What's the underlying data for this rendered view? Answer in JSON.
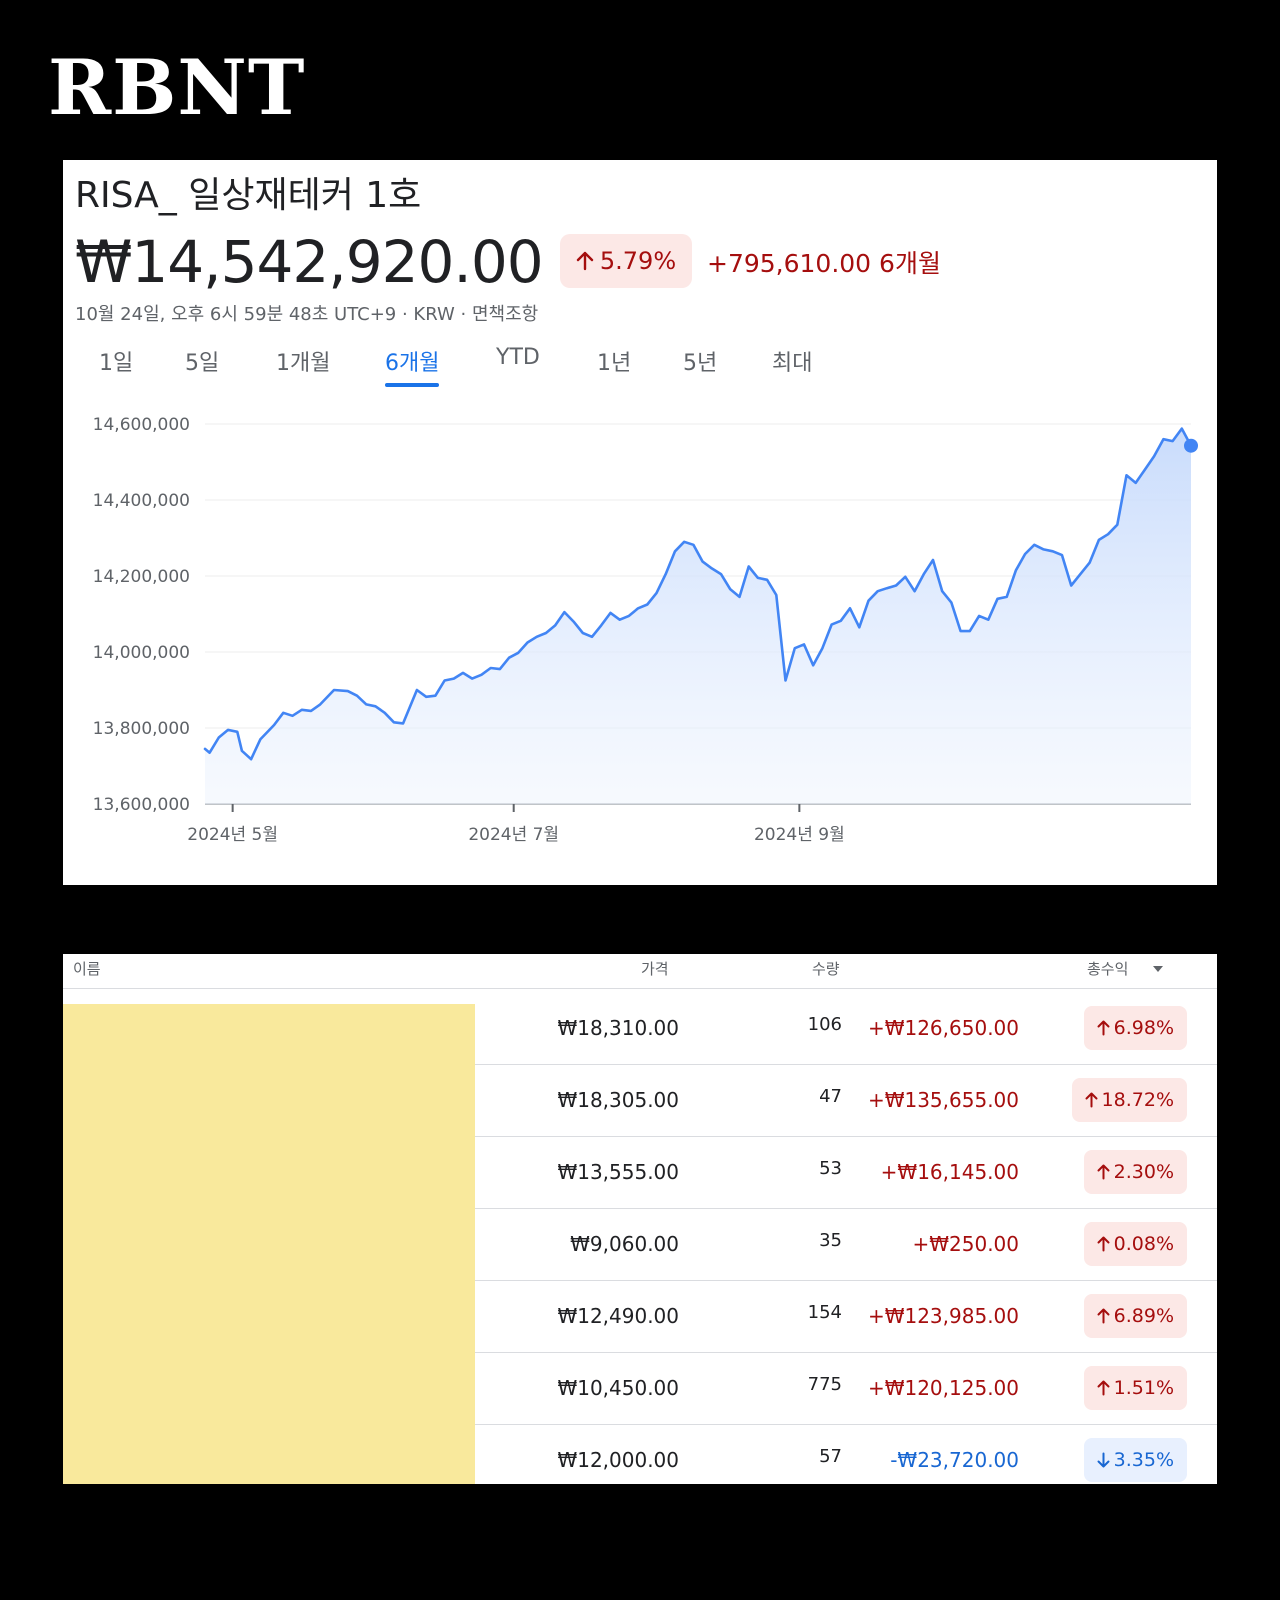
{
  "brand": "RBNT",
  "portfolio": {
    "name": "RISA_ 일상재테커 1호",
    "value": "₩14,542,920.00",
    "change_pct": "5.79%",
    "change_amount": "+795,610.00 6개월",
    "timestamp": "10월 24일, 오후 6시 59분 48초 UTC+9 · KRW · 면책조항"
  },
  "icons": {
    "up": "arrow-up-icon",
    "down": "arrow-down-icon",
    "sort": "sort-down-icon"
  },
  "colors": {
    "accent": "#1a73e8",
    "gain": "#a50e0e",
    "loss": "#1967d2",
    "redacted": "#f9e99c"
  },
  "tabs": [
    {
      "label": "1일",
      "active": false
    },
    {
      "label": "5일",
      "active": false
    },
    {
      "label": "1개월",
      "active": false
    },
    {
      "label": "6개월",
      "active": true
    },
    {
      "label": "YTD",
      "active": false
    },
    {
      "label": "1년",
      "active": false
    },
    {
      "label": "5년",
      "active": false
    },
    {
      "label": "최대",
      "active": false
    }
  ],
  "chart_data": {
    "type": "area",
    "ylim": [
      13600000,
      14600000
    ],
    "y_ticks": [
      14600000,
      14400000,
      14200000,
      14000000,
      13800000,
      13600000
    ],
    "y_tick_labels": [
      "14,600,000",
      "14,400,000",
      "14,200,000",
      "14,000,000",
      "13,800,000",
      "13,600,000"
    ],
    "x_tick_labels": [
      {
        "label": "2024년 5월",
        "date": "2024-05-01"
      },
      {
        "label": "2024년 7월",
        "date": "2024-07-01"
      },
      {
        "label": "2024년 9월",
        "date": "2024-09-01"
      }
    ],
    "grid": true,
    "series": [
      {
        "values": [
          [
            "2024-04-25",
            13745000
          ],
          [
            "2024-04-26",
            13735000
          ],
          [
            "2024-04-28",
            13775000
          ],
          [
            "2024-04-30",
            13795000
          ],
          [
            "2024-05-02",
            13790000
          ],
          [
            "2024-05-03",
            13740000
          ],
          [
            "2024-05-05",
            13718000
          ],
          [
            "2024-05-07",
            13770000
          ],
          [
            "2024-05-10",
            13808000
          ],
          [
            "2024-05-12",
            13840000
          ],
          [
            "2024-05-14",
            13832000
          ],
          [
            "2024-05-16",
            13848000
          ],
          [
            "2024-05-18",
            13845000
          ],
          [
            "2024-05-20",
            13862000
          ],
          [
            "2024-05-23",
            13900000
          ],
          [
            "2024-05-26",
            13897000
          ],
          [
            "2024-05-28",
            13885000
          ],
          [
            "2024-05-30",
            13862000
          ],
          [
            "2024-06-01",
            13857000
          ],
          [
            "2024-06-03",
            13840000
          ],
          [
            "2024-06-05",
            13815000
          ],
          [
            "2024-06-07",
            13812000
          ],
          [
            "2024-06-10",
            13900000
          ],
          [
            "2024-06-12",
            13882000
          ],
          [
            "2024-06-14",
            13885000
          ],
          [
            "2024-06-16",
            13925000
          ],
          [
            "2024-06-18",
            13930000
          ],
          [
            "2024-06-20",
            13945000
          ],
          [
            "2024-06-22",
            13930000
          ],
          [
            "2024-06-24",
            13940000
          ],
          [
            "2024-06-26",
            13958000
          ],
          [
            "2024-06-28",
            13955000
          ],
          [
            "2024-06-30",
            13985000
          ],
          [
            "2024-07-02",
            13998000
          ],
          [
            "2024-07-04",
            14025000
          ],
          [
            "2024-07-06",
            14040000
          ],
          [
            "2024-07-08",
            14050000
          ],
          [
            "2024-07-10",
            14070000
          ],
          [
            "2024-07-12",
            14105000
          ],
          [
            "2024-07-14",
            14080000
          ],
          [
            "2024-07-16",
            14050000
          ],
          [
            "2024-07-18",
            14040000
          ],
          [
            "2024-07-20",
            14070000
          ],
          [
            "2024-07-22",
            14103000
          ],
          [
            "2024-07-24",
            14085000
          ],
          [
            "2024-07-26",
            14095000
          ],
          [
            "2024-07-28",
            14115000
          ],
          [
            "2024-07-30",
            14125000
          ],
          [
            "2024-08-01",
            14155000
          ],
          [
            "2024-08-03",
            14205000
          ],
          [
            "2024-08-05",
            14265000
          ],
          [
            "2024-08-07",
            14290000
          ],
          [
            "2024-08-09",
            14282000
          ],
          [
            "2024-08-11",
            14238000
          ],
          [
            "2024-08-13",
            14220000
          ],
          [
            "2024-08-15",
            14205000
          ],
          [
            "2024-08-17",
            14165000
          ],
          [
            "2024-08-19",
            14145000
          ],
          [
            "2024-08-21",
            14225000
          ],
          [
            "2024-08-23",
            14195000
          ],
          [
            "2024-08-25",
            14190000
          ],
          [
            "2024-08-27",
            14150000
          ],
          [
            "2024-08-29",
            13925000
          ],
          [
            "2024-08-31",
            14010000
          ],
          [
            "2024-09-02",
            14020000
          ],
          [
            "2024-09-04",
            13965000
          ],
          [
            "2024-09-06",
            14010000
          ],
          [
            "2024-09-08",
            14072000
          ],
          [
            "2024-09-10",
            14082000
          ],
          [
            "2024-09-12",
            14115000
          ],
          [
            "2024-09-14",
            14065000
          ],
          [
            "2024-09-16",
            14135000
          ],
          [
            "2024-09-18",
            14160000
          ],
          [
            "2024-09-20",
            14168000
          ],
          [
            "2024-09-22",
            14175000
          ],
          [
            "2024-09-24",
            14198000
          ],
          [
            "2024-09-26",
            14160000
          ],
          [
            "2024-09-28",
            14205000
          ],
          [
            "2024-09-30",
            14242000
          ],
          [
            "2024-10-02",
            14160000
          ],
          [
            "2024-10-04",
            14130000
          ],
          [
            "2024-10-06",
            14055000
          ],
          [
            "2024-10-08",
            14055000
          ],
          [
            "2024-10-10",
            14095000
          ],
          [
            "2024-10-12",
            14085000
          ],
          [
            "2024-10-14",
            14140000
          ],
          [
            "2024-10-16",
            14145000
          ],
          [
            "2024-10-18",
            14215000
          ],
          [
            "2024-10-20",
            14258000
          ],
          [
            "2024-10-22",
            14282000
          ],
          [
            "2024-10-24",
            14270000
          ],
          [
            "2024-10-26",
            14265000
          ],
          [
            "2024-10-28",
            14255000
          ],
          [
            "2024-10-30",
            14175000
          ],
          [
            "2024-11-01",
            14205000
          ],
          [
            "2024-11-03",
            14235000
          ],
          [
            "2024-11-05",
            14295000
          ],
          [
            "2024-11-07",
            14310000
          ],
          [
            "2024-11-09",
            14335000
          ],
          [
            "2024-11-11",
            14465000
          ],
          [
            "2024-11-13",
            14445000
          ],
          [
            "2024-11-15",
            14480000
          ],
          [
            "2024-11-17",
            14515000
          ],
          [
            "2024-11-19",
            14560000
          ],
          [
            "2024-11-21",
            14555000
          ],
          [
            "2024-11-23",
            14588000
          ],
          [
            "2024-11-25",
            14542920
          ]
        ]
      }
    ]
  },
  "table": {
    "headers": {
      "name": "이름",
      "price": "가격",
      "qty": "수량",
      "total": "총수익"
    },
    "rows": [
      {
        "price": "₩18,310.00",
        "qty": "106",
        "gain": "+₩126,650.00",
        "pct": "6.98%",
        "direction": "up"
      },
      {
        "price": "₩18,305.00",
        "qty": "47",
        "gain": "+₩135,655.00",
        "pct": "18.72%",
        "direction": "up"
      },
      {
        "price": "₩13,555.00",
        "qty": "53",
        "gain": "+₩16,145.00",
        "pct": "2.30%",
        "direction": "up"
      },
      {
        "price": "₩9,060.00",
        "qty": "35",
        "gain": "+₩250.00",
        "pct": "0.08%",
        "direction": "up"
      },
      {
        "price": "₩12,490.00",
        "qty": "154",
        "gain": "+₩123,985.00",
        "pct": "6.89%",
        "direction": "up"
      },
      {
        "price": "₩10,450.00",
        "qty": "775",
        "gain": "+₩120,125.00",
        "pct": "1.51%",
        "direction": "up"
      },
      {
        "price": "₩12,000.00",
        "qty": "57",
        "gain": "-₩23,720.00",
        "pct": "3.35%",
        "direction": "down"
      }
    ]
  }
}
